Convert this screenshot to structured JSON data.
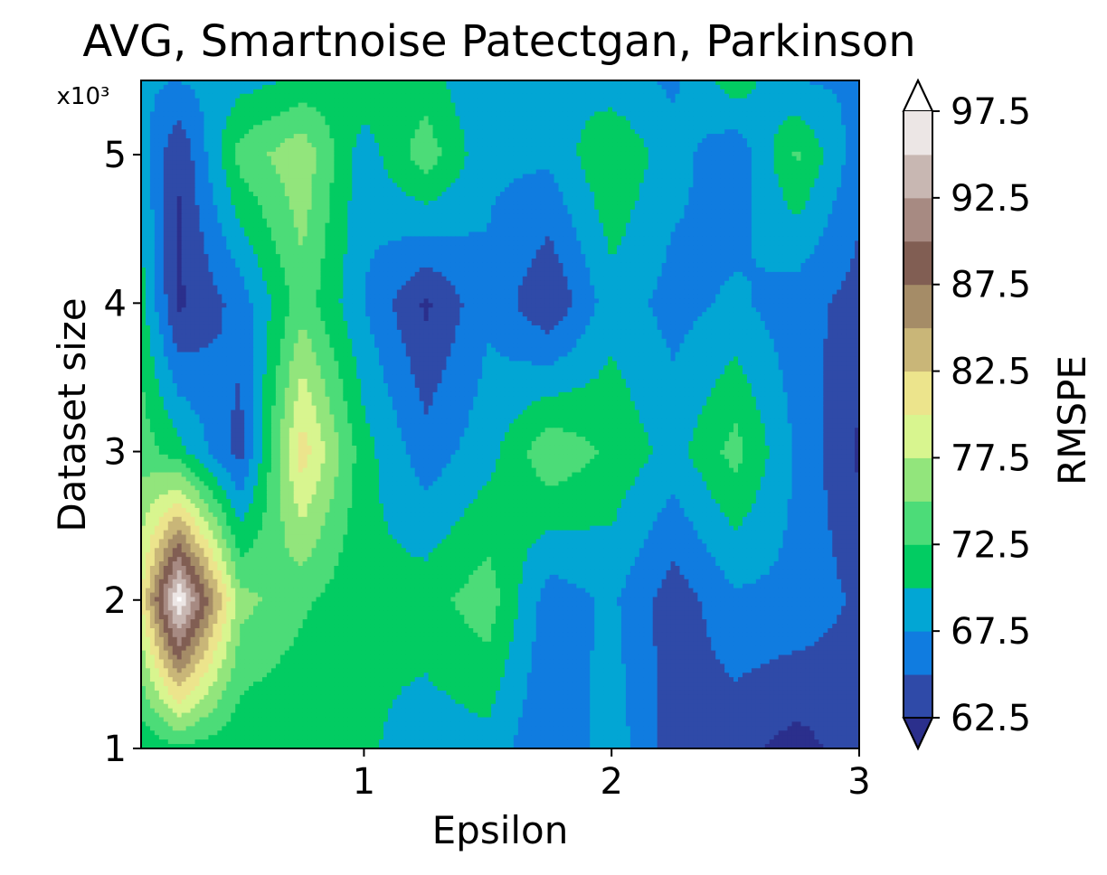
{
  "chart_data": {
    "type": "heatmap",
    "title": "AVG, Smartnoise Patectgan, Parkinson",
    "xlabel": "Epsilon",
    "ylabel": "Dataset size",
    "y_multiplier": "x10³",
    "xlim": [
      0.1,
      3.0
    ],
    "ylim": [
      1,
      5.5
    ],
    "xticks": [
      1,
      2,
      3
    ],
    "yticks": [
      1,
      2,
      3,
      4,
      5
    ],
    "colorbar": {
      "label": "RMSPE",
      "ticks": [
        62.5,
        67.5,
        72.5,
        77.5,
        82.5,
        87.5,
        92.5,
        97.5
      ],
      "levels": [
        62.5,
        65,
        67.5,
        70,
        72.5,
        75,
        77.5,
        80,
        82.5,
        85,
        87.5,
        90,
        92.5,
        95,
        97.5
      ],
      "level_colors": [
        "#2f4aa8",
        "#107ce0",
        "#02a6d4",
        "#02cc62",
        "#4cdc78",
        "#92e57c",
        "#d8f58f",
        "#ece48c",
        "#c9b678",
        "#a58c67",
        "#815e53",
        "#a78a82",
        "#c8b7b2",
        "#ece6e5"
      ],
      "under_color": "#2b2f8c",
      "over_color": "#ffffff",
      "extend": "both"
    },
    "x": [
      0.1,
      0.25,
      0.5,
      0.75,
      1.0,
      1.25,
      1.5,
      1.75,
      2.0,
      2.25,
      2.5,
      2.75,
      3.0
    ],
    "y": [
      1.0,
      2.0,
      3.0,
      4.0,
      5.0,
      5.5
    ],
    "z": [
      [
        70.5,
        72.0,
        70.5,
        70.0,
        70.5,
        68.5,
        69.0,
        65.0,
        69.0,
        63.8,
        63.3,
        61.5,
        63.8
      ],
      [
        80.0,
        98.0,
        76.0,
        73.0,
        70.5,
        71.5,
        74.0,
        66.0,
        68.0,
        63.5,
        67.0,
        66.8,
        64.5
      ],
      [
        74.0,
        71.0,
        64.0,
        81.5,
        71.0,
        66.0,
        69.0,
        74.5,
        72.0,
        69.0,
        73.5,
        67.0,
        62.0
      ],
      [
        71.0,
        62.0,
        66.0,
        74.0,
        67.5,
        62.0,
        67.0,
        62.5,
        69.0,
        66.5,
        68.0,
        66.0,
        64.0
      ],
      [
        69.0,
        62.5,
        73.5,
        77.0,
        68.5,
        74.0,
        68.0,
        68.0,
        72.5,
        68.5,
        65.5,
        73.0,
        66.0
      ],
      [
        68.0,
        67.5,
        69.0,
        70.5,
        72.0,
        71.0,
        67.5,
        70.0,
        68.5,
        67.0,
        71.5,
        67.5,
        67.0
      ]
    ]
  }
}
